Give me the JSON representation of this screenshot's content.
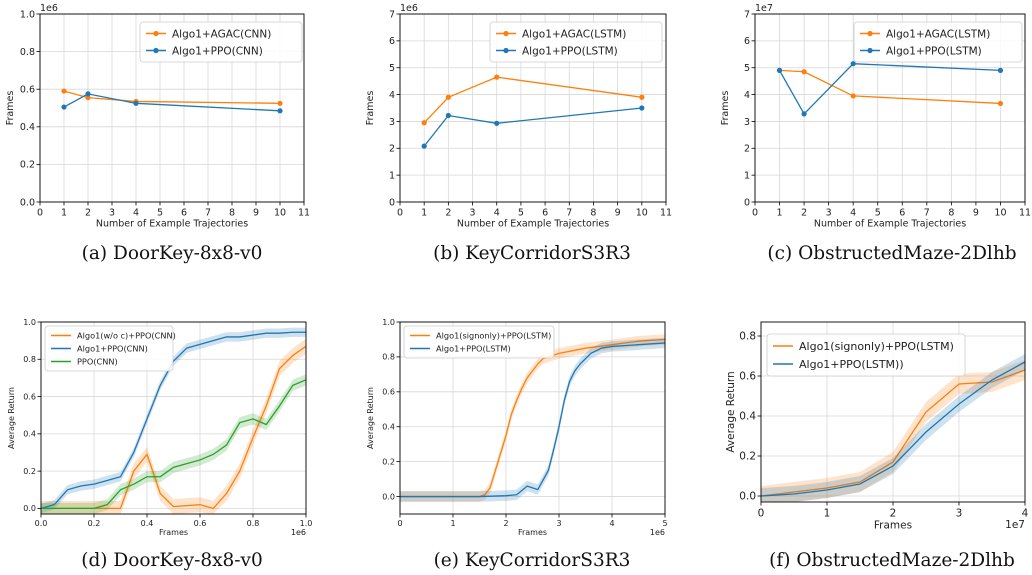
{
  "chart_data": [
    {
      "type": "line",
      "caption": "(a) DoorKey-8x8-v0",
      "offset_label": "1e6",
      "xlabel": "Number of Example Trajectories",
      "ylabel": "Frames",
      "xlim": [
        0,
        11
      ],
      "ylim": [
        0,
        1.0
      ],
      "xticks": [
        0,
        1,
        2,
        3,
        4,
        5,
        6,
        7,
        8,
        9,
        10,
        11
      ],
      "yticks": [
        0.0,
        0.2,
        0.4,
        0.6,
        0.8,
        1.0
      ],
      "ytick_labels": [
        "0.0",
        "0.2",
        "0.4",
        "0.6",
        "0.8",
        "1.0"
      ],
      "grid": true,
      "legend": "top-right",
      "series": [
        {
          "name": "Algo1+AGAC(CNN)",
          "color": "#ff7f0e",
          "x": [
            1,
            2,
            4,
            10
          ],
          "y": [
            0.59,
            0.555,
            0.535,
            0.525
          ]
        },
        {
          "name": "Algo1+PPO(CNN)",
          "color": "#1f77b4",
          "x": [
            1,
            2,
            4,
            10
          ],
          "y": [
            0.505,
            0.575,
            0.525,
            0.485
          ]
        }
      ]
    },
    {
      "type": "line",
      "caption": "(b) KeyCorridorS3R3",
      "offset_label": "1e6",
      "xlabel": "Number of Example Trajectories",
      "ylabel": "Frames",
      "xlim": [
        0,
        11
      ],
      "ylim": [
        0,
        7
      ],
      "xticks": [
        0,
        1,
        2,
        3,
        4,
        5,
        6,
        7,
        8,
        9,
        10,
        11
      ],
      "yticks": [
        0,
        1,
        2,
        3,
        4,
        5,
        6,
        7
      ],
      "ytick_labels": [
        "0",
        "1",
        "2",
        "3",
        "4",
        "5",
        "6",
        "7"
      ],
      "grid": true,
      "legend": "top-right",
      "series": [
        {
          "name": "Algo1+AGAC(LSTM)",
          "color": "#ff7f0e",
          "x": [
            1,
            2,
            4,
            10
          ],
          "y": [
            2.95,
            3.9,
            4.65,
            3.9
          ]
        },
        {
          "name": "Algo1+PPO(LSTM)",
          "color": "#1f77b4",
          "x": [
            1,
            2,
            4,
            10
          ],
          "y": [
            2.08,
            3.22,
            2.93,
            3.5
          ]
        }
      ]
    },
    {
      "type": "line",
      "caption": "(c) ObstructedMaze-2Dlhb",
      "offset_label": "1e7",
      "xlabel": "Number of Example Trajectories",
      "ylabel": "Frames",
      "xlim": [
        0,
        11
      ],
      "ylim": [
        0,
        7
      ],
      "xticks": [
        0,
        1,
        2,
        3,
        4,
        5,
        6,
        7,
        8,
        9,
        10,
        11
      ],
      "yticks": [
        0,
        1,
        2,
        3,
        4,
        5,
        6,
        7
      ],
      "ytick_labels": [
        "0",
        "1",
        "2",
        "3",
        "4",
        "5",
        "6",
        "7"
      ],
      "grid": true,
      "legend": "top-right",
      "series": [
        {
          "name": "Algo1+AGAC(LSTM)",
          "color": "#ff7f0e",
          "x": [
            1,
            2,
            4,
            10
          ],
          "y": [
            4.9,
            4.85,
            3.95,
            3.67
          ]
        },
        {
          "name": "Algo1+PPO(LSTM)",
          "color": "#1f77b4",
          "x": [
            1,
            2,
            4,
            10
          ],
          "y": [
            4.9,
            3.28,
            5.15,
            4.9
          ]
        }
      ]
    },
    {
      "type": "area",
      "caption": "(d) DoorKey-8x8-v0",
      "offset_label": "1e6",
      "xlabel": "Frames",
      "ylabel": "Average Return",
      "xlim": [
        0,
        1.0
      ],
      "ylim": [
        -0.03,
        1.0
      ],
      "xticks": [
        0.0,
        0.2,
        0.4,
        0.6,
        0.8,
        1.0
      ],
      "xtick_labels": [
        "0.0",
        "0.2",
        "0.4",
        "0.6",
        "0.8",
        "1.0"
      ],
      "yticks": [
        0.0,
        0.2,
        0.4,
        0.6,
        0.8,
        1.0
      ],
      "ytick_labels": [
        "0.0",
        "0.2",
        "0.4",
        "0.6",
        "0.8",
        "1.0"
      ],
      "grid": true,
      "legend": "top-left",
      "series": [
        {
          "name": "Algo1(w/o c)+PPO(CNN)",
          "color": "#ff7f0e",
          "x": [
            0,
            0.05,
            0.1,
            0.15,
            0.2,
            0.25,
            0.3,
            0.35,
            0.4,
            0.45,
            0.5,
            0.55,
            0.6,
            0.65,
            0.7,
            0.75,
            0.8,
            0.85,
            0.9,
            0.95,
            1.0
          ],
          "y": [
            0,
            0,
            0,
            0,
            0,
            0,
            0,
            0.2,
            0.29,
            0.08,
            0.01,
            0.015,
            0.02,
            0,
            0.08,
            0.2,
            0.38,
            0.55,
            0.75,
            0.82,
            0.87
          ],
          "band": 0.04
        },
        {
          "name": "Algo1+PPO(CNN)",
          "color": "#1f77b4",
          "x": [
            0,
            0.05,
            0.1,
            0.15,
            0.2,
            0.25,
            0.3,
            0.35,
            0.4,
            0.45,
            0.5,
            0.55,
            0.6,
            0.65,
            0.7,
            0.75,
            0.8,
            0.85,
            0.9,
            0.95,
            1.0
          ],
          "y": [
            0,
            0.02,
            0.1,
            0.12,
            0.13,
            0.15,
            0.17,
            0.3,
            0.48,
            0.66,
            0.79,
            0.86,
            0.88,
            0.9,
            0.92,
            0.92,
            0.93,
            0.94,
            0.94,
            0.945,
            0.945
          ],
          "band": 0.025
        },
        {
          "name": "PPO(CNN)",
          "color": "#2ca02c",
          "x": [
            0,
            0.05,
            0.1,
            0.15,
            0.2,
            0.25,
            0.3,
            0.35,
            0.4,
            0.45,
            0.5,
            0.55,
            0.6,
            0.65,
            0.7,
            0.75,
            0.8,
            0.85,
            0.9,
            0.95,
            1.0
          ],
          "y": [
            0,
            0,
            0,
            0,
            0,
            0.02,
            0.1,
            0.13,
            0.17,
            0.17,
            0.22,
            0.24,
            0.26,
            0.29,
            0.34,
            0.46,
            0.48,
            0.45,
            0.55,
            0.66,
            0.69
          ],
          "band": 0.03
        }
      ]
    },
    {
      "type": "area",
      "caption": "(e) KeyCorridorS3R3",
      "offset_label": "1e6",
      "xlabel": "Frames",
      "ylabel": "Average Return",
      "xlim": [
        0,
        5
      ],
      "ylim": [
        -0.1,
        1.0
      ],
      "xticks": [
        0,
        1,
        2,
        3,
        4,
        5
      ],
      "xtick_labels": [
        "0",
        "1",
        "2",
        "3",
        "4",
        "5"
      ],
      "yticks": [
        0.0,
        0.2,
        0.4,
        0.6,
        0.8,
        1.0
      ],
      "ytick_labels": [
        "0.0",
        "0.2",
        "0.4",
        "0.6",
        "0.8",
        "1.0"
      ],
      "grid": true,
      "legend": "top-left",
      "series": [
        {
          "name": "Algo1(signonly)+PPO(LSTM)",
          "color": "#ff7f0e",
          "x": [
            0,
            1.0,
            1.5,
            1.6,
            1.7,
            1.8,
            1.9,
            2.0,
            2.1,
            2.2,
            2.3,
            2.4,
            2.5,
            2.6,
            2.7,
            2.8,
            3.0,
            3.5,
            4.0,
            4.5,
            5.0
          ],
          "y": [
            0,
            0,
            0,
            0.01,
            0.05,
            0.15,
            0.25,
            0.35,
            0.47,
            0.55,
            0.62,
            0.68,
            0.72,
            0.76,
            0.79,
            0.8,
            0.82,
            0.85,
            0.87,
            0.89,
            0.9
          ],
          "band": 0.03
        },
        {
          "name": "Algo1+PPO(LSTM)",
          "color": "#1f77b4",
          "x": [
            0,
            1.5,
            2.0,
            2.2,
            2.4,
            2.6,
            2.8,
            2.9,
            3.0,
            3.1,
            3.2,
            3.3,
            3.4,
            3.6,
            3.8,
            4.0,
            4.5,
            5.0
          ],
          "y": [
            0,
            0,
            0.005,
            0.01,
            0.06,
            0.04,
            0.15,
            0.27,
            0.4,
            0.55,
            0.66,
            0.72,
            0.76,
            0.82,
            0.85,
            0.86,
            0.87,
            0.88
          ],
          "band": 0.03
        }
      ]
    },
    {
      "type": "area",
      "caption": "(f) ObstructedMaze-2Dlhb",
      "offset_label": "1e7",
      "xlabel": "Frames",
      "ylabel": "Average Return",
      "xlim": [
        0,
        4
      ],
      "ylim": [
        -0.03,
        0.87
      ],
      "xticks": [
        0,
        1,
        2,
        3,
        4
      ],
      "xtick_labels": [
        "0",
        "1",
        "2",
        "3",
        "4"
      ],
      "yticks": [
        0.0,
        0.2,
        0.4,
        0.6,
        0.8
      ],
      "ytick_labels": [
        "0.0",
        "0.2",
        "0.4",
        "0.6",
        "0.8"
      ],
      "grid": true,
      "legend": "top-left",
      "series": [
        {
          "name": "Algo1(signonly)+PPO(LSTM)",
          "color": "#ff7f0e",
          "x": [
            0,
            0.5,
            1.0,
            1.5,
            2.0,
            2.5,
            3.0,
            3.5,
            4.0
          ],
          "y": [
            0,
            0.02,
            0.04,
            0.07,
            0.17,
            0.42,
            0.56,
            0.57,
            0.63
          ],
          "band": 0.05
        },
        {
          "name": "Algo1+PPO(LSTM))",
          "color": "#1f77b4",
          "x": [
            0,
            0.5,
            1.0,
            1.5,
            2.0,
            2.5,
            3.0,
            3.5,
            4.0
          ],
          "y": [
            0,
            0.01,
            0.03,
            0.06,
            0.15,
            0.32,
            0.46,
            0.58,
            0.67
          ],
          "band": 0.04
        }
      ]
    }
  ]
}
